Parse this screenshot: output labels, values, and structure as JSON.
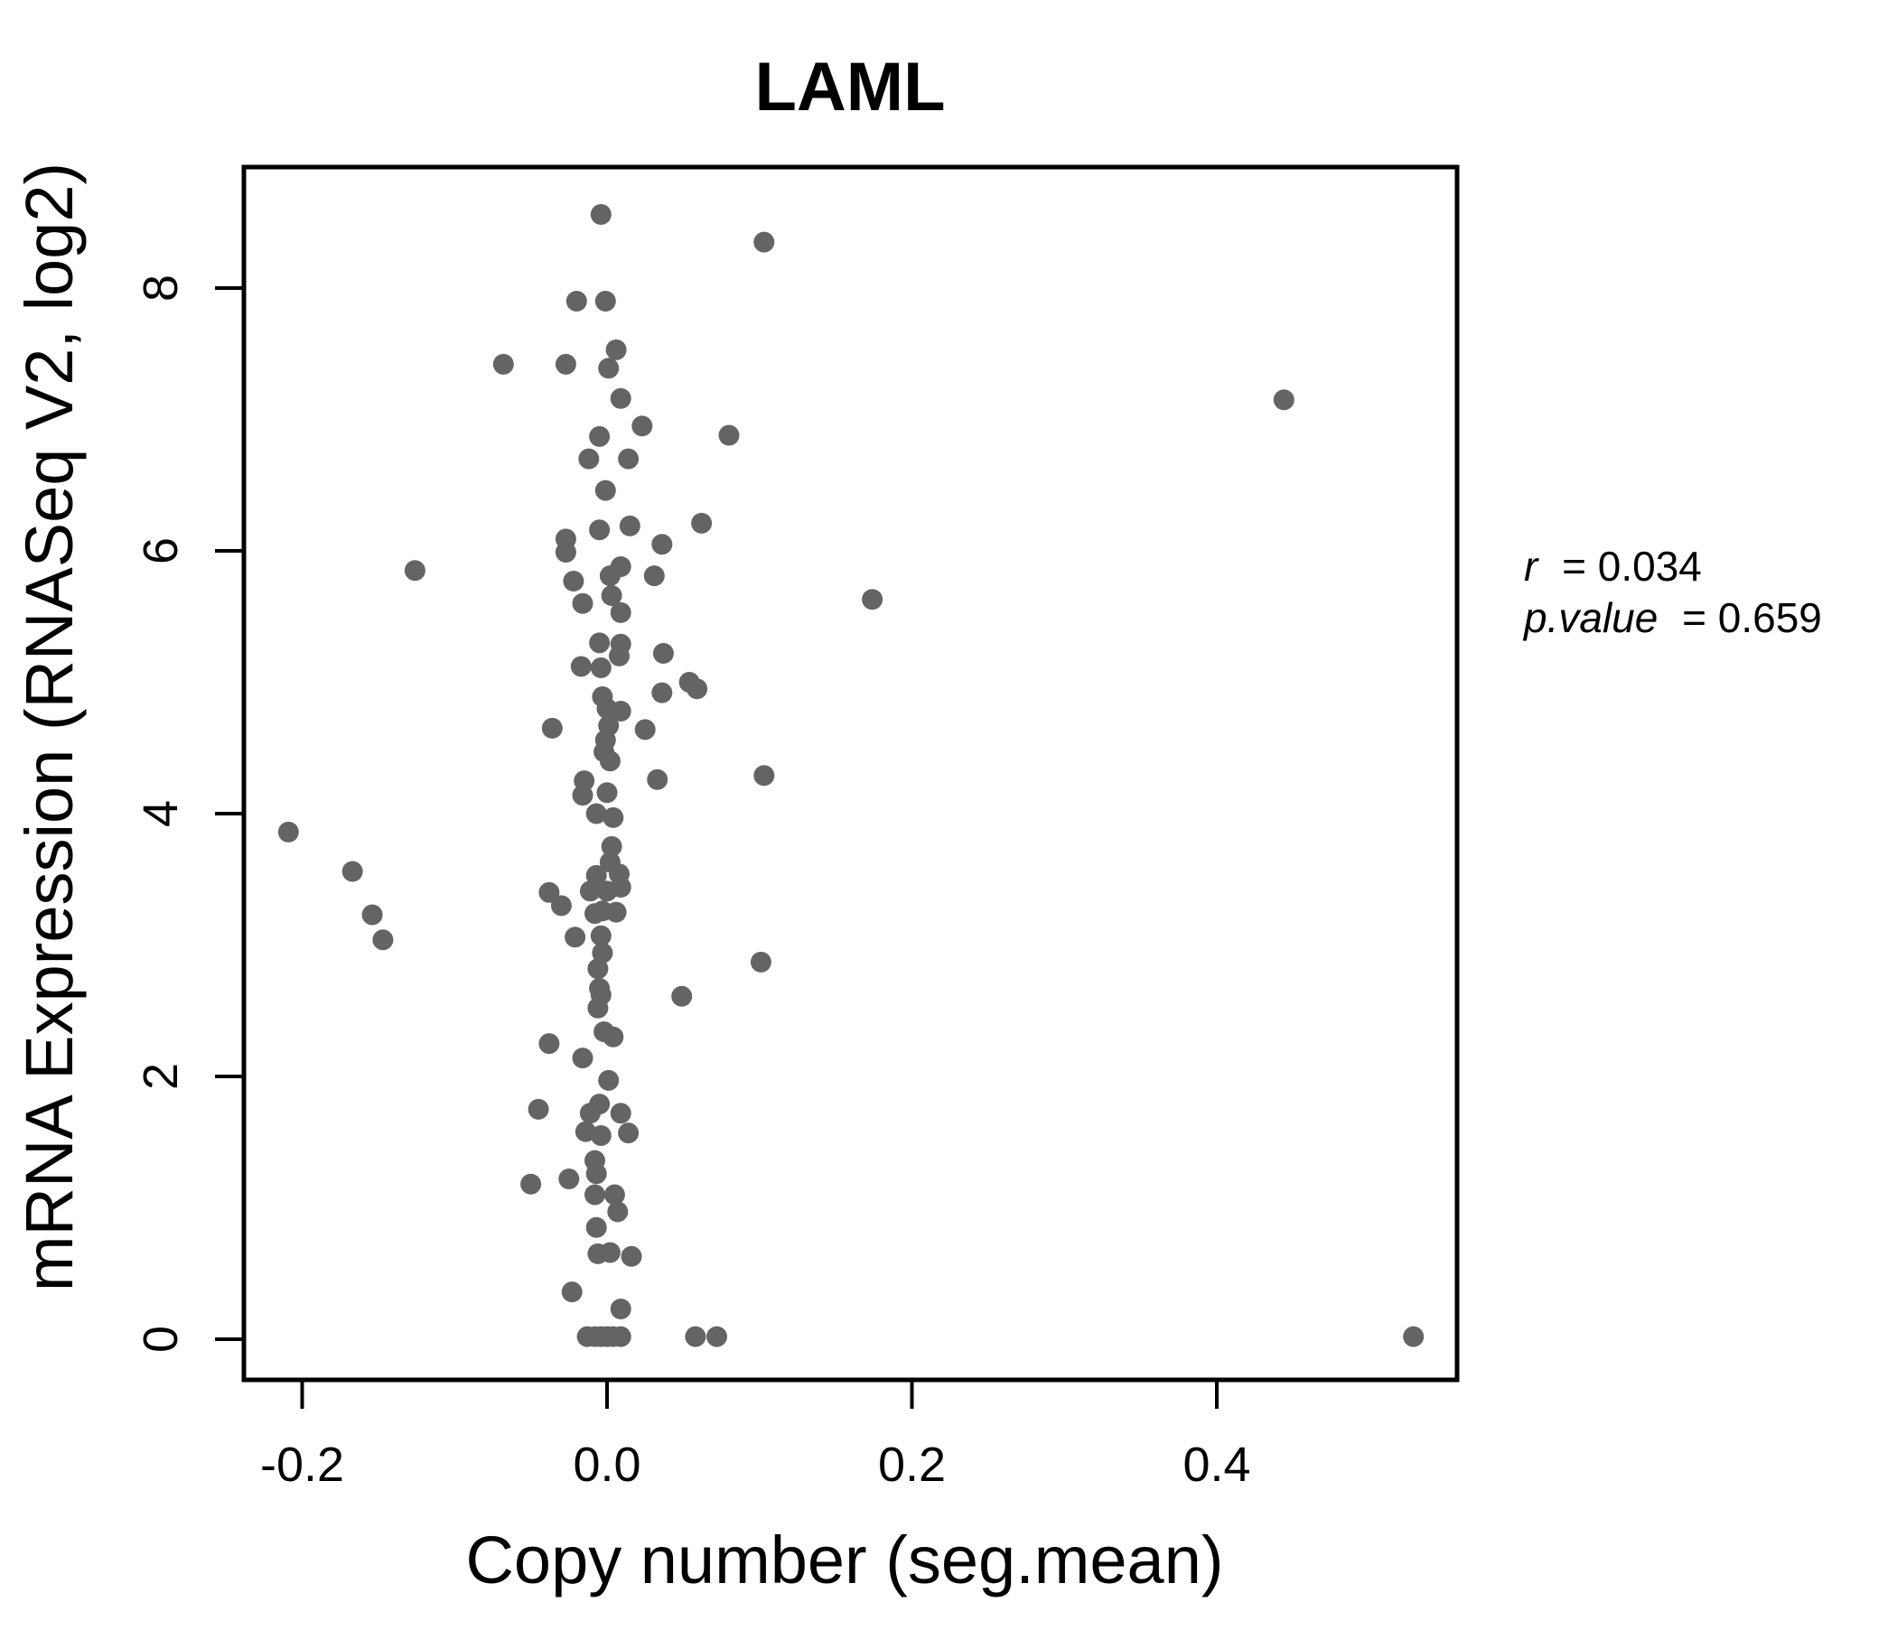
{
  "title": "LAML",
  "annotation": {
    "lines": [
      {
        "label": "r",
        "rest": "= 0.034"
      },
      {
        "label": "p.value",
        "rest": "= 0.659"
      }
    ]
  },
  "chart_data": {
    "type": "scatter",
    "title": "LAML",
    "xlabel": "Copy number (seg.mean)",
    "ylabel": "mRNA Expression (RNASeq V2, log2)",
    "xlim": [
      -0.238,
      0.558
    ],
    "ylim": [
      -0.31,
      8.92
    ],
    "grid": false,
    "legend": "none",
    "annotations": [
      "r = 0.034",
      "p.value = 0.659"
    ],
    "point_color": "#646464",
    "title_color": "#6e6e6e",
    "axis_color": "#000000",
    "x_ticks": [
      {
        "v": -0.2,
        "label": "-0.2"
      },
      {
        "v": 0.0,
        "label": "0.0"
      },
      {
        "v": 0.2,
        "label": "0.2"
      },
      {
        "v": 0.4,
        "label": "0.4"
      }
    ],
    "y_ticks": [
      {
        "v": 0,
        "label": "0"
      },
      {
        "v": 2,
        "label": "2"
      },
      {
        "v": 4,
        "label": "4"
      },
      {
        "v": 6,
        "label": "6"
      },
      {
        "v": 8,
        "label": "8"
      }
    ],
    "points": [
      [
        -0.004,
        8.56
      ],
      [
        0.103,
        8.35
      ],
      [
        -0.02,
        7.9
      ],
      [
        -0.001,
        7.9
      ],
      [
        0.006,
        7.53
      ],
      [
        -0.068,
        7.42
      ],
      [
        -0.027,
        7.42
      ],
      [
        0.001,
        7.39
      ],
      [
        0.009,
        7.16
      ],
      [
        0.444,
        7.15
      ],
      [
        0.023,
        6.95
      ],
      [
        0.08,
        6.88
      ],
      [
        -0.005,
        6.87
      ],
      [
        -0.012,
        6.7
      ],
      [
        0.014,
        6.7
      ],
      [
        -0.001,
        6.46
      ],
      [
        -0.005,
        6.16
      ],
      [
        0.015,
        6.19
      ],
      [
        0.062,
        6.21
      ],
      [
        0.036,
        6.05
      ],
      [
        -0.027,
        6.09
      ],
      [
        -0.027,
        5.99
      ],
      [
        0.009,
        5.88
      ],
      [
        0.002,
        5.81
      ],
      [
        0.031,
        5.81
      ],
      [
        -0.126,
        5.85
      ],
      [
        -0.022,
        5.77
      ],
      [
        0.003,
        5.66
      ],
      [
        -0.016,
        5.6
      ],
      [
        0.009,
        5.53
      ],
      [
        0.174,
        5.63
      ],
      [
        -0.005,
        5.3
      ],
      [
        0.009,
        5.29
      ],
      [
        0.008,
        5.2
      ],
      [
        0.037,
        5.22
      ],
      [
        -0.017,
        5.12
      ],
      [
        -0.004,
        5.11
      ],
      [
        0.054,
        5.0
      ],
      [
        0.059,
        4.95
      ],
      [
        0.036,
        4.92
      ],
      [
        -0.003,
        4.89
      ],
      [
        0.0,
        4.8
      ],
      [
        0.009,
        4.78
      ],
      [
        0.001,
        4.67
      ],
      [
        -0.036,
        4.65
      ],
      [
        0.025,
        4.64
      ],
      [
        -0.001,
        4.56
      ],
      [
        -0.002,
        4.47
      ],
      [
        0.002,
        4.4
      ],
      [
        -0.015,
        4.25
      ],
      [
        0.033,
        4.26
      ],
      [
        0.103,
        4.29
      ],
      [
        -0.016,
        4.14
      ],
      [
        0.0,
        4.16
      ],
      [
        -0.007,
        4.0
      ],
      [
        0.004,
        3.97
      ],
      [
        -0.209,
        3.86
      ],
      [
        0.003,
        3.75
      ],
      [
        0.002,
        3.63
      ],
      [
        -0.167,
        3.56
      ],
      [
        -0.007,
        3.53
      ],
      [
        0.008,
        3.54
      ],
      [
        -0.011,
        3.41
      ],
      [
        0.0,
        3.41
      ],
      [
        0.009,
        3.44
      ],
      [
        -0.038,
        3.4
      ],
      [
        -0.03,
        3.3
      ],
      [
        -0.003,
        3.26
      ],
      [
        0.006,
        3.25
      ],
      [
        -0.008,
        3.24
      ],
      [
        -0.154,
        3.23
      ],
      [
        -0.147,
        3.04
      ],
      [
        -0.021,
        3.06
      ],
      [
        -0.004,
        3.07
      ],
      [
        -0.003,
        2.94
      ],
      [
        -0.006,
        2.82
      ],
      [
        -0.005,
        2.67
      ],
      [
        -0.004,
        2.62
      ],
      [
        -0.006,
        2.52
      ],
      [
        0.049,
        2.61
      ],
      [
        0.101,
        2.87
      ],
      [
        -0.002,
        2.34
      ],
      [
        0.004,
        2.3
      ],
      [
        -0.016,
        2.14
      ],
      [
        -0.038,
        2.25
      ],
      [
        0.001,
        1.97
      ],
      [
        -0.045,
        1.75
      ],
      [
        -0.005,
        1.79
      ],
      [
        -0.011,
        1.72
      ],
      [
        0.009,
        1.72
      ],
      [
        -0.014,
        1.58
      ],
      [
        0.014,
        1.57
      ],
      [
        -0.004,
        1.55
      ],
      [
        -0.008,
        1.36
      ],
      [
        -0.05,
        1.18
      ],
      [
        -0.025,
        1.22
      ],
      [
        -0.007,
        1.26
      ],
      [
        -0.008,
        1.1
      ],
      [
        0.005,
        1.1
      ],
      [
        0.007,
        0.97
      ],
      [
        -0.007,
        0.85
      ],
      [
        -0.006,
        0.65
      ],
      [
        0.002,
        0.66
      ],
      [
        0.016,
        0.63
      ],
      [
        -0.023,
        0.36
      ],
      [
        0.009,
        0.23
      ],
      [
        -0.013,
        0.02
      ],
      [
        -0.008,
        0.02
      ],
      [
        -0.004,
        0.02
      ],
      [
        0.0,
        0.02
      ],
      [
        0.004,
        0.02
      ],
      [
        0.009,
        0.02
      ],
      [
        0.058,
        0.02
      ],
      [
        0.072,
        0.02
      ],
      [
        0.529,
        0.02
      ]
    ]
  }
}
